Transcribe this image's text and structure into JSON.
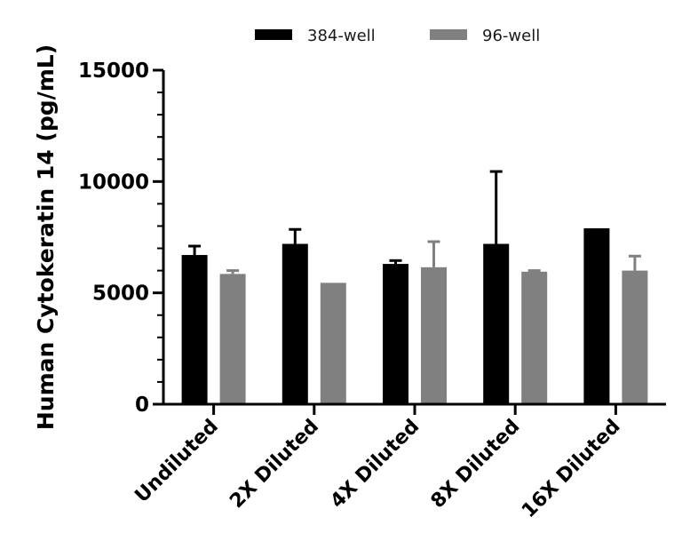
{
  "chart_data": {
    "type": "bar",
    "title": "",
    "xlabel": "",
    "ylabel": "Human Cytokeratin 14 (pg/mL)",
    "ylim": [
      0,
      15000
    ],
    "yticks": [
      0,
      5000,
      10000,
      15000
    ],
    "categories": [
      "Undiluted",
      "2X Diluted",
      "4X Diluted",
      "8X Diluted",
      "16X Diluted"
    ],
    "series": [
      {
        "name": "384-well",
        "color": "#000000",
        "values": [
          6700,
          7200,
          6300,
          7200,
          7900
        ],
        "errors": [
          400,
          650,
          150,
          3250,
          0
        ]
      },
      {
        "name": "96-well",
        "color": "#808080",
        "values": [
          5850,
          5450,
          6150,
          5950,
          6000
        ],
        "errors": [
          150,
          0,
          1150,
          50,
          650
        ]
      }
    ],
    "legend_position": "top"
  }
}
